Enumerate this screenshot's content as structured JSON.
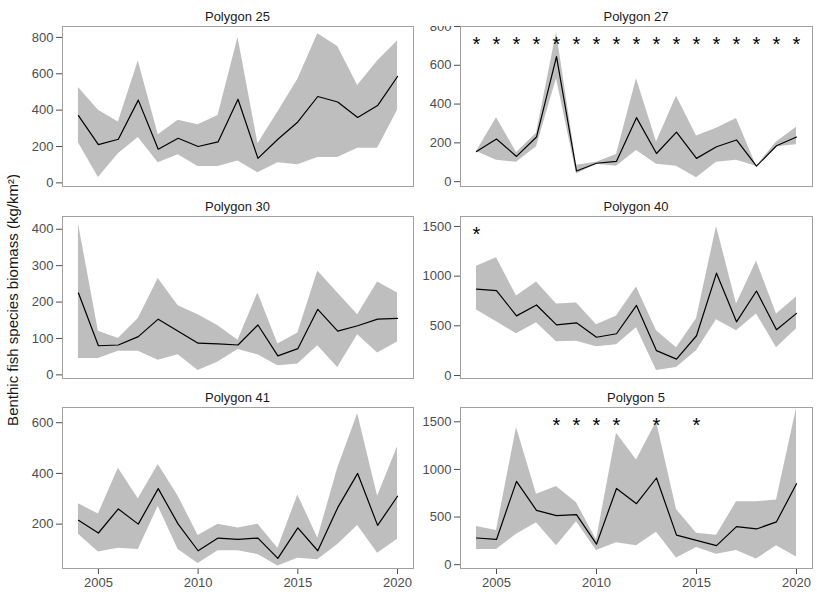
{
  "chart_data": {
    "type": "line",
    "ylabel": "Benthic fish species biomass (kg/km²)",
    "color": "#000000",
    "band_color": "#bebebe",
    "x": [
      2004,
      2005,
      2006,
      2007,
      2008,
      2009,
      2010,
      2011,
      2012,
      2013,
      2014,
      2015,
      2016,
      2017,
      2018,
      2019,
      2020
    ],
    "xlim": [
      2003.2,
      2020.8
    ],
    "xticks": [
      2005,
      2010,
      2015,
      2020
    ],
    "panels": [
      {
        "title": "Polygon 25",
        "ylim": [
          -20,
          860
        ],
        "yticks": [
          0,
          200,
          400,
          600,
          800
        ],
        "tick_labels": "y",
        "values": [
          370,
          210,
          240,
          455,
          185,
          245,
          200,
          225,
          460,
          135,
          240,
          335,
          475,
          445,
          360,
          425,
          585
        ],
        "lower": [
          220,
          30,
          160,
          250,
          110,
          155,
          90,
          90,
          120,
          55,
          110,
          100,
          140,
          140,
          190,
          190,
          400
        ],
        "upper": [
          525,
          400,
          335,
          670,
          265,
          345,
          320,
          370,
          800,
          215,
          390,
          570,
          820,
          750,
          535,
          670,
          780
        ],
        "annotations": []
      },
      {
        "title": "Polygon 27",
        "ylim": [
          -25,
          800
        ],
        "yticks": [
          0,
          200,
          400,
          600,
          800
        ],
        "tick_labels": "y",
        "values": [
          155,
          220,
          130,
          230,
          645,
          55,
          95,
          105,
          330,
          145,
          255,
          120,
          180,
          215,
          80,
          185,
          230
        ],
        "lower": [
          155,
          110,
          100,
          180,
          530,
          40,
          90,
          80,
          160,
          90,
          80,
          20,
          100,
          110,
          80,
          180,
          190
        ],
        "upper": [
          155,
          330,
          150,
          250,
          770,
          85,
          100,
          140,
          530,
          205,
          440,
          235,
          275,
          325,
          80,
          205,
          280
        ],
        "annotations": [
          {
            "x": 2004,
            "label": "*"
          },
          {
            "x": 2005,
            "label": "*"
          },
          {
            "x": 2006,
            "label": "*"
          },
          {
            "x": 2007,
            "label": "*"
          },
          {
            "x": 2008,
            "label": "*"
          },
          {
            "x": 2009,
            "label": "*"
          },
          {
            "x": 2010,
            "label": "*"
          },
          {
            "x": 2011,
            "label": "*"
          },
          {
            "x": 2012,
            "label": "*"
          },
          {
            "x": 2013,
            "label": "*"
          },
          {
            "x": 2014,
            "label": "*"
          },
          {
            "x": 2015,
            "label": "*"
          },
          {
            "x": 2016,
            "label": "*"
          },
          {
            "x": 2017,
            "label": "*"
          },
          {
            "x": 2018,
            "label": "*"
          },
          {
            "x": 2019,
            "label": "*"
          },
          {
            "x": 2020,
            "label": "*"
          }
        ]
      },
      {
        "title": "Polygon 30",
        "ylim": [
          -10,
          435
        ],
        "yticks": [
          0,
          100,
          200,
          300,
          400
        ],
        "tick_labels": "y",
        "values": [
          225,
          80,
          82,
          105,
          153,
          120,
          87,
          85,
          82,
          137,
          52,
          72,
          180,
          120,
          135,
          153,
          155
        ],
        "lower": [
          45,
          45,
          65,
          65,
          40,
          55,
          12,
          35,
          70,
          55,
          25,
          30,
          80,
          20,
          110,
          60,
          90
        ],
        "upper": [
          415,
          120,
          100,
          155,
          265,
          190,
          165,
          135,
          95,
          225,
          85,
          115,
          285,
          225,
          165,
          255,
          225
        ],
        "annotations": []
      },
      {
        "title": "Polygon 40",
        "ylim": [
          -30,
          1600
        ],
        "yticks": [
          0,
          500,
          1000,
          1500
        ],
        "tick_labels": "y",
        "values": [
          870,
          855,
          600,
          710,
          510,
          530,
          385,
          420,
          705,
          250,
          165,
          400,
          1030,
          540,
          850,
          460,
          625
        ],
        "lower": [
          660,
          540,
          420,
          530,
          340,
          345,
          290,
          310,
          480,
          50,
          80,
          250,
          560,
          450,
          620,
          280,
          470
        ],
        "upper": [
          1100,
          1185,
          800,
          940,
          720,
          730,
          510,
          600,
          890,
          450,
          280,
          570,
          1500,
          720,
          1150,
          620,
          790
        ],
        "annotations": [
          {
            "x": 2004,
            "label": "*"
          }
        ]
      },
      {
        "title": "Polygon 41",
        "ylim": [
          25,
          660
        ],
        "yticks": [
          200,
          400,
          600
        ],
        "values": [
          215,
          165,
          260,
          200,
          340,
          200,
          95,
          145,
          140,
          145,
          65,
          185,
          95,
          265,
          400,
          195,
          310
        ],
        "lower": [
          160,
          90,
          105,
          100,
          270,
          100,
          45,
          95,
          95,
          80,
          35,
          65,
          60,
          120,
          195,
          85,
          140
        ],
        "upper": [
          280,
          240,
          420,
          300,
          435,
          310,
          155,
          200,
          185,
          200,
          105,
          315,
          145,
          420,
          635,
          310,
          505
        ],
        "annotations": []
      },
      {
        "title": "Polygon 5",
        "ylim": [
          -40,
          1650
        ],
        "yticks": [
          0,
          500,
          1000,
          1500
        ],
        "values": [
          280,
          265,
          875,
          570,
          515,
          525,
          215,
          800,
          640,
          910,
          310,
          255,
          200,
          400,
          375,
          450,
          850
        ],
        "lower": [
          160,
          160,
          320,
          440,
          200,
          450,
          150,
          230,
          200,
          340,
          70,
          180,
          110,
          150,
          60,
          200,
          80
        ],
        "upper": [
          400,
          360,
          1440,
          740,
          820,
          650,
          260,
          1380,
          1100,
          1500,
          580,
          330,
          310,
          660,
          660,
          680,
          1640
        ],
        "annotations": [
          {
            "x": 2008,
            "label": "*"
          },
          {
            "x": 2009,
            "label": "*"
          },
          {
            "x": 2010,
            "label": "*"
          },
          {
            "x": 2011,
            "label": "*"
          },
          {
            "x": 2013,
            "label": "*"
          },
          {
            "x": 2015,
            "label": "*"
          }
        ]
      }
    ]
  }
}
